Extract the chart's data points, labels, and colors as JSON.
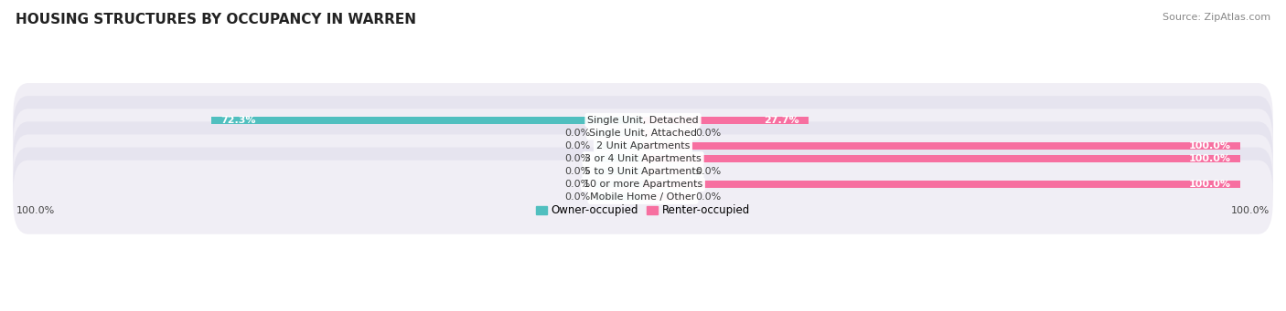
{
  "title": "HOUSING STRUCTURES BY OCCUPANCY IN WARREN",
  "source": "Source: ZipAtlas.com",
  "categories": [
    "Single Unit, Detached",
    "Single Unit, Attached",
    "2 Unit Apartments",
    "3 or 4 Unit Apartments",
    "5 to 9 Unit Apartments",
    "10 or more Apartments",
    "Mobile Home / Other"
  ],
  "owner_values": [
    72.3,
    0.0,
    0.0,
    0.0,
    0.0,
    0.0,
    0.0
  ],
  "renter_values": [
    27.7,
    0.0,
    100.0,
    100.0,
    0.0,
    100.0,
    0.0
  ],
  "owner_color": "#50bfbf",
  "renter_color": "#f76fa0",
  "owner_stub_color": "#85d5d5",
  "renter_stub_color": "#f9aac4",
  "label_left_values": [
    "72.3%",
    "0.0%",
    "0.0%",
    "0.0%",
    "0.0%",
    "0.0%",
    "0.0%"
  ],
  "label_right_values": [
    "27.7%",
    "0.0%",
    "100.0%",
    "100.0%",
    "0.0%",
    "100.0%",
    "0.0%"
  ],
  "bottom_left_label": "100.0%",
  "bottom_right_label": "100.0%",
  "legend_owner": "Owner-occupied",
  "legend_renter": "Renter-occupied",
  "title_fontsize": 11,
  "source_fontsize": 8,
  "label_fontsize": 8,
  "category_fontsize": 8,
  "legend_fontsize": 8.5,
  "row_colors": [
    "#f0eef5",
    "#e6e4ef"
  ],
  "stub_size": 8.0,
  "xlim": 100
}
